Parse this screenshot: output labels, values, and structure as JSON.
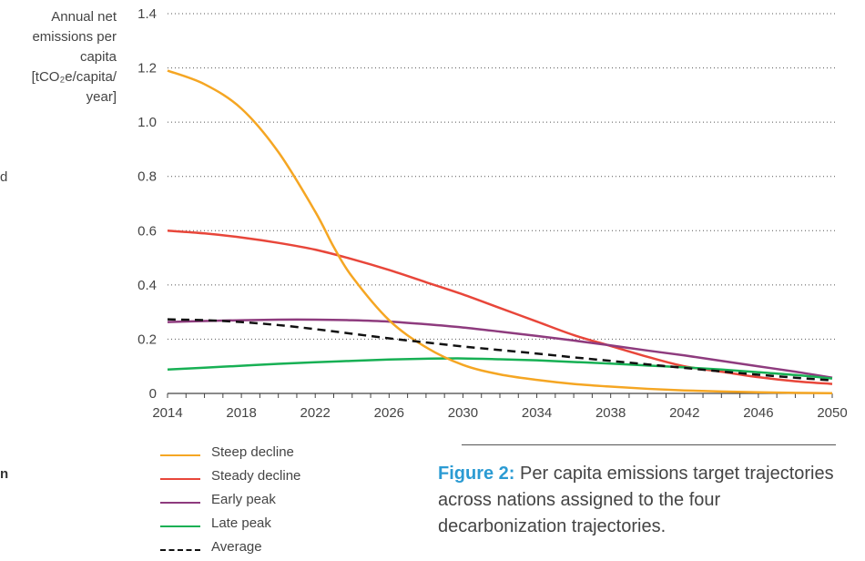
{
  "page": {
    "edge_text_1": "d",
    "edge_text_2": "n"
  },
  "caption": {
    "label": "Figure 2:",
    "text": "Per capita emissions target trajectories across nations assigned to the four decarbonization trajectories."
  },
  "chart_data": {
    "type": "line",
    "title": "",
    "xlabel": "",
    "ylabel_lines": [
      "Annual net",
      "emissions per",
      "capita",
      "[tCO₂e/capita/",
      "year]"
    ],
    "xlim": [
      2014,
      2050
    ],
    "ylim": [
      0,
      1.4
    ],
    "x_ticks_major": [
      2014,
      2018,
      2022,
      2026,
      2030,
      2034,
      2038,
      2042,
      2046,
      2050
    ],
    "x_ticks_minor_step": 1,
    "y_ticks": [
      0,
      0.2,
      0.4,
      0.6,
      0.8,
      1.0,
      1.2,
      1.4
    ],
    "y_tick_labels": [
      "0",
      "0.2",
      "0.4",
      "0.6",
      "0.8",
      "1.0",
      "1.2",
      "1.4"
    ],
    "grid": "horizontal dotted",
    "legend_position": "bottom-left",
    "series": [
      {
        "name": "Steep decline",
        "color": "#f5a623",
        "dash": "solid",
        "x": [
          2014,
          2016,
          2018,
          2020,
          2022,
          2023,
          2024,
          2026,
          2028,
          2030,
          2032,
          2034,
          2036,
          2038,
          2040,
          2042,
          2044,
          2046,
          2048,
          2050
        ],
        "y": [
          1.19,
          1.14,
          1.05,
          0.89,
          0.67,
          0.54,
          0.43,
          0.27,
          0.17,
          0.105,
          0.07,
          0.05,
          0.035,
          0.025,
          0.017,
          0.011,
          0.007,
          0.004,
          0.002,
          0.001
        ]
      },
      {
        "name": "Steady decline",
        "color": "#e8463a",
        "dash": "solid",
        "x": [
          2014,
          2016,
          2018,
          2020,
          2022,
          2024,
          2026,
          2028,
          2030,
          2032,
          2034,
          2036,
          2038,
          2040,
          2042,
          2044,
          2046,
          2048,
          2050
        ],
        "y": [
          0.6,
          0.59,
          0.575,
          0.555,
          0.53,
          0.495,
          0.455,
          0.41,
          0.365,
          0.315,
          0.265,
          0.215,
          0.175,
          0.135,
          0.1,
          0.08,
          0.06,
          0.045,
          0.035
        ]
      },
      {
        "name": "Early peak",
        "color": "#8e3b7e",
        "dash": "solid",
        "x": [
          2014,
          2016,
          2018,
          2020,
          2022,
          2024,
          2026,
          2028,
          2030,
          2032,
          2034,
          2036,
          2038,
          2040,
          2042,
          2044,
          2046,
          2048,
          2050
        ],
        "y": [
          0.263,
          0.267,
          0.27,
          0.272,
          0.272,
          0.27,
          0.265,
          0.255,
          0.243,
          0.228,
          0.212,
          0.195,
          0.177,
          0.158,
          0.14,
          0.12,
          0.1,
          0.08,
          0.058
        ]
      },
      {
        "name": "Late peak",
        "color": "#17b054",
        "dash": "solid",
        "x": [
          2014,
          2016,
          2018,
          2020,
          2022,
          2024,
          2026,
          2028,
          2030,
          2032,
          2034,
          2036,
          2038,
          2040,
          2042,
          2044,
          2046,
          2048,
          2050
        ],
        "y": [
          0.088,
          0.095,
          0.102,
          0.109,
          0.115,
          0.12,
          0.125,
          0.128,
          0.129,
          0.126,
          0.122,
          0.116,
          0.11,
          0.103,
          0.096,
          0.088,
          0.078,
          0.068,
          0.055
        ]
      },
      {
        "name": "Average",
        "color": "#111111",
        "dash": "dashed",
        "x": [
          2014,
          2016,
          2018,
          2020,
          2022,
          2024,
          2026,
          2028,
          2030,
          2032,
          2034,
          2036,
          2038,
          2040,
          2042,
          2044,
          2046,
          2048,
          2050
        ],
        "y": [
          0.273,
          0.27,
          0.263,
          0.252,
          0.237,
          0.22,
          0.203,
          0.188,
          0.173,
          0.16,
          0.147,
          0.133,
          0.12,
          0.107,
          0.094,
          0.081,
          0.069,
          0.058,
          0.048
        ]
      }
    ]
  }
}
